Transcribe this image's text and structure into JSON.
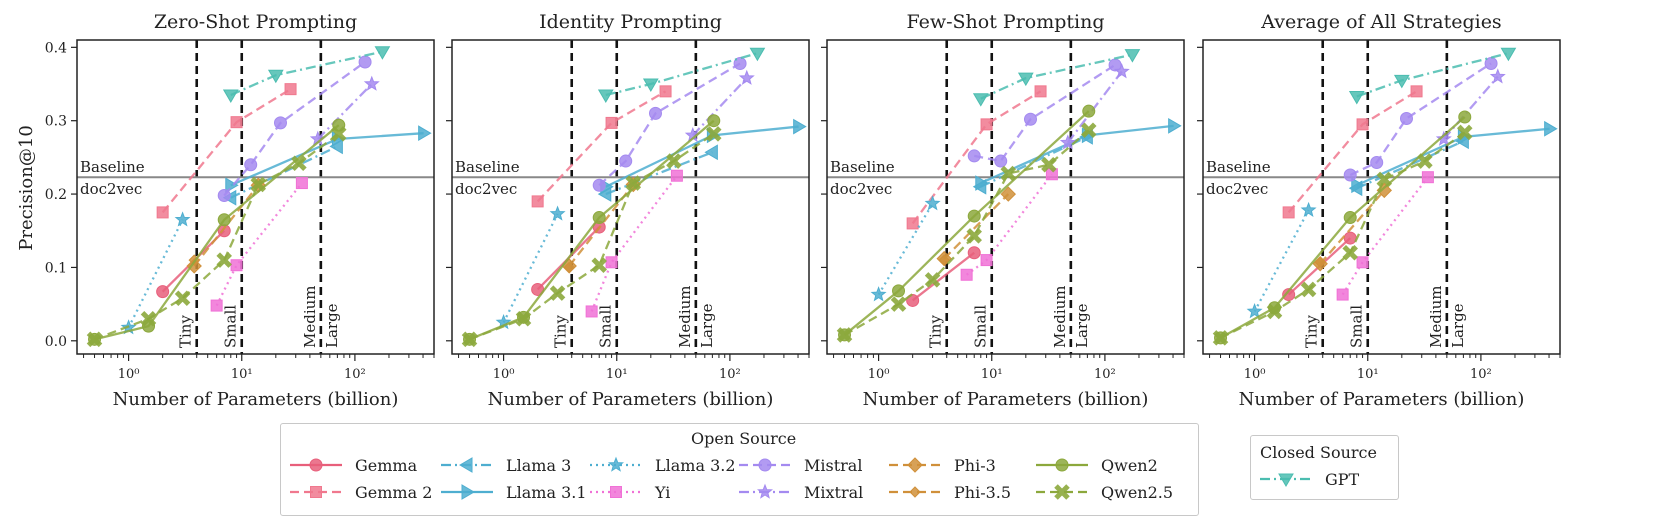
{
  "figure": {
    "ylabel": "Precision@10",
    "xlabel": "Number of Parameters (billion)",
    "baseline_text_top": "Baseline",
    "baseline_text_bottom": "doc2vec",
    "baseline_value": 0.223,
    "size_classes": [
      {
        "label": "Tiny",
        "boundary": 4
      },
      {
        "label": "Small",
        "boundary": 10
      },
      {
        "label": "Medium",
        "boundary": 50
      },
      {
        "label": "Large",
        "boundary": null
      }
    ],
    "colors": {
      "Gemma": "#e85f7b",
      "Gemma 2": "#f0788e",
      "Llama 3": "#4eaed0",
      "Llama 3.1": "#4eaed0",
      "Llama 3.2": "#4eaed0",
      "Yi": "#f071d6",
      "Mistral": "#a48af0",
      "Mixtral": "#a48af0",
      "Phi-3": "#d0903a",
      "Phi-3.5": "#d0903a",
      "Qwen2": "#8ca83c",
      "Qwen2.5": "#8ca83c",
      "GPT": "#4bbdb0",
      "baseline": "#888888"
    }
  },
  "legend": {
    "open_title": "Open Source",
    "closed_title": "Closed Source",
    "open": [
      {
        "name": "Gemma",
        "style": "solid",
        "marker": "circle"
      },
      {
        "name": "Gemma 2",
        "style": "dashed",
        "marker": "square"
      },
      {
        "name": "Llama 3",
        "style": "dashdot",
        "marker": "triangle-left"
      },
      {
        "name": "Llama 3.1",
        "style": "solid",
        "marker": "triangle-right"
      },
      {
        "name": "Llama 3.2",
        "style": "dotted",
        "marker": "star"
      },
      {
        "name": "Yi",
        "style": "dotted",
        "marker": "square"
      },
      {
        "name": "Mistral",
        "style": "dashed",
        "marker": "circle"
      },
      {
        "name": "Mixtral",
        "style": "dashdot",
        "marker": "star"
      },
      {
        "name": "Phi-3",
        "style": "dashed",
        "marker": "diamond"
      },
      {
        "name": "Phi-3.5",
        "style": "dashed",
        "marker": "diamond-small"
      },
      {
        "name": "Qwen2",
        "style": "solid",
        "marker": "circle"
      },
      {
        "name": "Qwen2.5",
        "style": "dashed",
        "marker": "x"
      }
    ],
    "closed": [
      {
        "name": "GPT",
        "style": "dashdot",
        "marker": "triangle-down"
      }
    ]
  },
  "chart_data": [
    {
      "type": "line",
      "title": "Zero-Shot Prompting",
      "xscale": "log",
      "xlim": [
        0.35,
        500
      ],
      "ylim": [
        -0.018,
        0.41
      ],
      "xticks": [
        {
          "v": 1,
          "l": "10⁰"
        },
        {
          "v": 10,
          "l": "10¹"
        },
        {
          "v": 100,
          "l": "10²"
        }
      ],
      "yticks": [
        0.0,
        0.1,
        0.2,
        0.3,
        0.4
      ],
      "series": [
        {
          "name": "Gemma",
          "x": [
            2,
            7
          ],
          "y": [
            0.067,
            0.15
          ]
        },
        {
          "name": "Gemma 2",
          "x": [
            2,
            9,
            27
          ],
          "y": [
            0.175,
            0.298,
            0.343
          ]
        },
        {
          "name": "Llama 3",
          "x": [
            8,
            70
          ],
          "y": [
            0.195,
            0.265
          ]
        },
        {
          "name": "Llama 3.1",
          "x": [
            8,
            70,
            405
          ],
          "y": [
            0.212,
            0.275,
            0.283
          ]
        },
        {
          "name": "Llama 3.2",
          "x": [
            1,
            3
          ],
          "y": [
            0.018,
            0.165
          ]
        },
        {
          "name": "Yi",
          "x": [
            6,
            9,
            34
          ],
          "y": [
            0.048,
            0.103,
            0.215
          ]
        },
        {
          "name": "Mistral",
          "x": [
            7,
            12,
            22,
            123
          ],
          "y": [
            0.198,
            0.24,
            0.297,
            0.38
          ]
        },
        {
          "name": "Mixtral",
          "x": [
            47,
            141
          ],
          "y": [
            0.275,
            0.35
          ]
        },
        {
          "name": "Phi-3",
          "x": [
            3.8,
            14
          ],
          "y": [
            0.102,
            0.212
          ]
        },
        {
          "name": "Phi-3.5",
          "x": [
            3.8
          ],
          "y": [
            0.11
          ]
        },
        {
          "name": "Qwen2",
          "x": [
            0.5,
            1.5,
            7,
            72
          ],
          "y": [
            0.002,
            0.02,
            0.165,
            0.294
          ]
        },
        {
          "name": "Qwen2.5",
          "x": [
            0.5,
            1.5,
            3,
            7,
            14,
            32,
            72
          ],
          "y": [
            0.002,
            0.03,
            0.058,
            0.11,
            0.213,
            0.242,
            0.282
          ]
        },
        {
          "name": "GPT",
          "x": [
            8,
            20,
            175
          ],
          "y": [
            0.335,
            0.362,
            0.394
          ]
        }
      ]
    },
    {
      "type": "line",
      "title": "Identity Prompting",
      "xscale": "log",
      "xlim": [
        0.35,
        500
      ],
      "ylim": [
        -0.018,
        0.41
      ],
      "xticks": [
        {
          "v": 1,
          "l": "10⁰"
        },
        {
          "v": 10,
          "l": "10¹"
        },
        {
          "v": 100,
          "l": "10²"
        }
      ],
      "yticks": [
        0.0,
        0.1,
        0.2,
        0.3,
        0.4
      ],
      "series": [
        {
          "name": "Gemma",
          "x": [
            2,
            7
          ],
          "y": [
            0.07,
            0.155
          ]
        },
        {
          "name": "Gemma 2",
          "x": [
            2,
            9,
            27
          ],
          "y": [
            0.19,
            0.297,
            0.34
          ]
        },
        {
          "name": "Llama 3",
          "x": [
            8,
            70
          ],
          "y": [
            0.2,
            0.257
          ]
        },
        {
          "name": "Llama 3.1",
          "x": [
            8,
            70,
            405
          ],
          "y": [
            0.21,
            0.28,
            0.292
          ]
        },
        {
          "name": "Llama 3.2",
          "x": [
            1,
            3
          ],
          "y": [
            0.025,
            0.173
          ]
        },
        {
          "name": "Yi",
          "x": [
            6,
            9,
            34
          ],
          "y": [
            0.04,
            0.107,
            0.225
          ]
        },
        {
          "name": "Mistral",
          "x": [
            7,
            12,
            22,
            123
          ],
          "y": [
            0.212,
            0.245,
            0.31,
            0.378
          ]
        },
        {
          "name": "Mixtral",
          "x": [
            47,
            141
          ],
          "y": [
            0.28,
            0.358
          ]
        },
        {
          "name": "Phi-3",
          "x": [
            3.8,
            14
          ],
          "y": [
            0.102,
            0.213
          ]
        },
        {
          "name": "Phi-3.5",
          "x": [
            3.8
          ],
          "y": [
            0.1
          ]
        },
        {
          "name": "Qwen2",
          "x": [
            0.5,
            1.5,
            7,
            72
          ],
          "y": [
            0.002,
            0.032,
            0.168,
            0.3
          ]
        },
        {
          "name": "Qwen2.5",
          "x": [
            0.5,
            1.5,
            3,
            7,
            14,
            32,
            72
          ],
          "y": [
            0.002,
            0.03,
            0.065,
            0.103,
            0.215,
            0.245,
            0.282
          ]
        },
        {
          "name": "GPT",
          "x": [
            8,
            20,
            175
          ],
          "y": [
            0.335,
            0.35,
            0.392
          ]
        }
      ]
    },
    {
      "type": "line",
      "title": "Few-Shot Prompting",
      "xscale": "log",
      "xlim": [
        0.35,
        500
      ],
      "ylim": [
        -0.018,
        0.41
      ],
      "xticks": [
        {
          "v": 1,
          "l": "10⁰"
        },
        {
          "v": 10,
          "l": "10¹"
        },
        {
          "v": 100,
          "l": "10²"
        }
      ],
      "yticks": [
        0.0,
        0.1,
        0.2,
        0.3,
        0.4
      ],
      "series": [
        {
          "name": "Gemma",
          "x": [
            2,
            7
          ],
          "y": [
            0.055,
            0.12
          ]
        },
        {
          "name": "Gemma 2",
          "x": [
            2,
            9,
            27
          ],
          "y": [
            0.16,
            0.295,
            0.34
          ]
        },
        {
          "name": "Llama 3",
          "x": [
            8,
            70
          ],
          "y": [
            0.21,
            0.278
          ]
        },
        {
          "name": "Llama 3.1",
          "x": [
            8,
            70,
            405
          ],
          "y": [
            0.215,
            0.28,
            0.293
          ]
        },
        {
          "name": "Llama 3.2",
          "x": [
            1,
            3
          ],
          "y": [
            0.063,
            0.187
          ]
        },
        {
          "name": "Yi",
          "x": [
            6,
            9,
            34
          ],
          "y": [
            0.09,
            0.11,
            0.227
          ]
        },
        {
          "name": "Mistral",
          "x": [
            7,
            12,
            22,
            123
          ],
          "y": [
            0.252,
            0.245,
            0.302,
            0.376
          ]
        },
        {
          "name": "Mixtral",
          "x": [
            47,
            141
          ],
          "y": [
            0.27,
            0.367
          ]
        },
        {
          "name": "Phi-3",
          "x": [
            3.8,
            14
          ],
          "y": [
            0.112,
            0.2
          ]
        },
        {
          "name": "Phi-3.5",
          "x": [
            3.8
          ],
          "y": [
            0.11
          ]
        },
        {
          "name": "Qwen2",
          "x": [
            0.5,
            1.5,
            7,
            72
          ],
          "y": [
            0.008,
            0.068,
            0.17,
            0.313
          ]
        },
        {
          "name": "Qwen2.5",
          "x": [
            0.5,
            1.5,
            3,
            7,
            14,
            32,
            72
          ],
          "y": [
            0.008,
            0.05,
            0.083,
            0.143,
            0.228,
            0.24,
            0.287
          ]
        },
        {
          "name": "GPT",
          "x": [
            8,
            20,
            175
          ],
          "y": [
            0.33,
            0.358,
            0.39
          ]
        }
      ]
    },
    {
      "type": "line",
      "title": "Average of All Strategies",
      "xscale": "log",
      "xlim": [
        0.35,
        500
      ],
      "ylim": [
        -0.018,
        0.41
      ],
      "xticks": [
        {
          "v": 1,
          "l": "10⁰"
        },
        {
          "v": 10,
          "l": "10¹"
        },
        {
          "v": 100,
          "l": "10²"
        }
      ],
      "yticks": [
        0.0,
        0.1,
        0.2,
        0.3,
        0.4
      ],
      "series": [
        {
          "name": "Gemma",
          "x": [
            2,
            7
          ],
          "y": [
            0.063,
            0.14
          ]
        },
        {
          "name": "Gemma 2",
          "x": [
            2,
            9,
            27
          ],
          "y": [
            0.175,
            0.295,
            0.34
          ]
        },
        {
          "name": "Llama 3",
          "x": [
            8,
            70
          ],
          "y": [
            0.208,
            0.272
          ]
        },
        {
          "name": "Llama 3.1",
          "x": [
            8,
            70,
            405
          ],
          "y": [
            0.212,
            0.278,
            0.289
          ]
        },
        {
          "name": "Llama 3.2",
          "x": [
            1,
            3
          ],
          "y": [
            0.04,
            0.178
          ]
        },
        {
          "name": "Yi",
          "x": [
            6,
            9,
            34
          ],
          "y": [
            0.063,
            0.107,
            0.223
          ]
        },
        {
          "name": "Mistral",
          "x": [
            7,
            12,
            22,
            123
          ],
          "y": [
            0.226,
            0.243,
            0.303,
            0.378
          ]
        },
        {
          "name": "Mixtral",
          "x": [
            47,
            141
          ],
          "y": [
            0.275,
            0.36
          ]
        },
        {
          "name": "Phi-3",
          "x": [
            3.8,
            14
          ],
          "y": [
            0.105,
            0.205
          ]
        },
        {
          "name": "Phi-3.5",
          "x": [
            3.8
          ],
          "y": [
            0.107
          ]
        },
        {
          "name": "Qwen2",
          "x": [
            0.5,
            1.5,
            7,
            72
          ],
          "y": [
            0.004,
            0.045,
            0.168,
            0.305
          ]
        },
        {
          "name": "Qwen2.5",
          "x": [
            0.5,
            1.5,
            3,
            7,
            14,
            32,
            72
          ],
          "y": [
            0.004,
            0.04,
            0.07,
            0.12,
            0.22,
            0.245,
            0.284
          ]
        },
        {
          "name": "GPT",
          "x": [
            8,
            20,
            175
          ],
          "y": [
            0.333,
            0.355,
            0.392
          ]
        }
      ]
    }
  ]
}
